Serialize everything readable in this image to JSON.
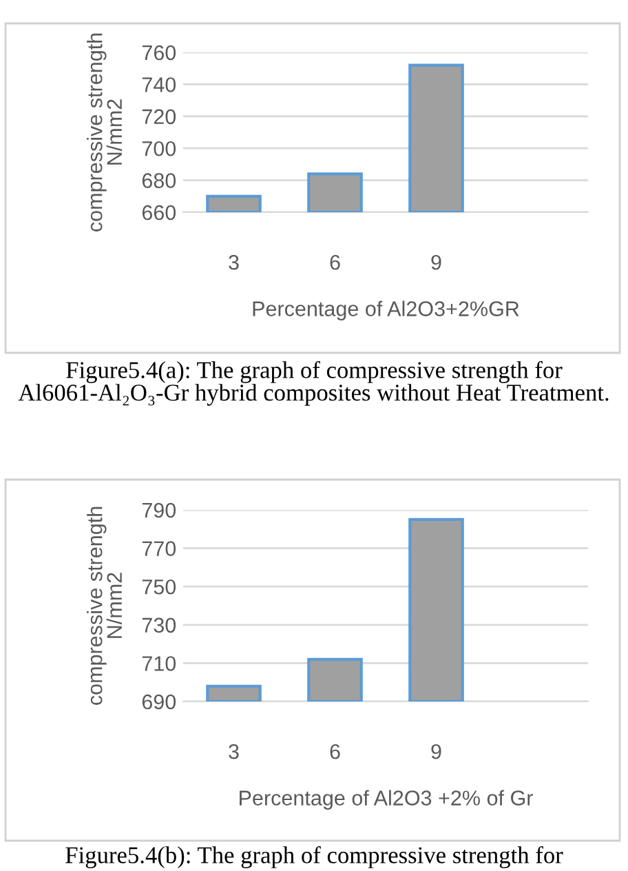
{
  "chart_data": [
    {
      "type": "bar",
      "xlabel": "Percentage of Al2O3+2%GR",
      "ylabel": "compressive strength\nN/mm2",
      "categories": [
        "3",
        "6",
        "9",
        null
      ],
      "values": [
        670,
        684,
        752,
        null
      ],
      "color": "#a0a0a0",
      "ylim": [
        660,
        760
      ],
      "yticks": [
        660,
        680,
        700,
        720,
        740,
        760
      ],
      "grid": "y",
      "legend": false,
      "annotations": [
        "Figure5.4(a): The graph of compressive strength for Al6061-Al₂O₃-Gr hybrid composites without Heat Treatment."
      ]
    },
    {
      "type": "bar",
      "xlabel": "Percentage of Al2O3 +2% of Gr",
      "ylabel": "compressive strength\nN/mm2",
      "categories": [
        "3",
        "6",
        "9",
        null
      ],
      "values": [
        698,
        712,
        785,
        null
      ],
      "color": "#a0a0a0",
      "ylim": [
        690,
        790
      ],
      "yticks": [
        690,
        710,
        730,
        750,
        770,
        790
      ],
      "grid": "y",
      "legend": false,
      "annotations": [
        "Figure5.4(b): The graph of compressive strength for"
      ]
    }
  ]
}
